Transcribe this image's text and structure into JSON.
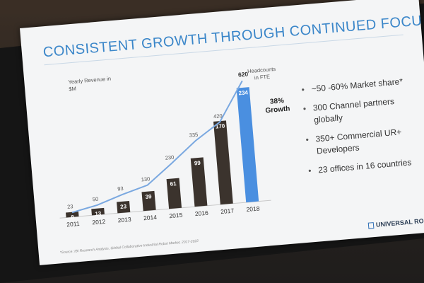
{
  "slide": {
    "title": "CONSISTENT GROWTH THROUGH CONTINUED FOCUS",
    "bullets": [
      "~50 -60% Market share*",
      "300 Channel partners globally",
      "350+ Commercial UR+ Developers",
      "23 offices in 16 countries"
    ],
    "source": "*Source: IBI Research Analysis, Global Collaborative Industrial Robot Market, 2017-2022",
    "logo_text": "UNIVERSAL ROBOTS"
  },
  "chart_data": {
    "type": "bar",
    "categories": [
      "2011",
      "2012",
      "2013",
      "2014",
      "2015",
      "2016",
      "2017",
      "2018"
    ],
    "series": [
      {
        "name": "Yearly Revenue in $M",
        "type": "bar",
        "values": [
          8,
          13,
          23,
          39,
          61,
          99,
          170,
          234
        ],
        "colors": [
          "#3b332d",
          "#3b332d",
          "#3b332d",
          "#3b332d",
          "#3b332d",
          "#3b332d",
          "#3b332d",
          "#4a8fe0"
        ]
      },
      {
        "name": "Headcounts in FTE",
        "type": "line",
        "values": [
          23,
          50,
          93,
          130,
          230,
          335,
          420,
          620
        ],
        "color": "#7aa8e0"
      }
    ],
    "bar_label": "Yearly Revenue in $M",
    "line_label": "Headcounts in FTE",
    "annotation": "38% Growth",
    "ylim_bars": [
      0,
      260
    ],
    "ylim_line": [
      0,
      650
    ]
  }
}
